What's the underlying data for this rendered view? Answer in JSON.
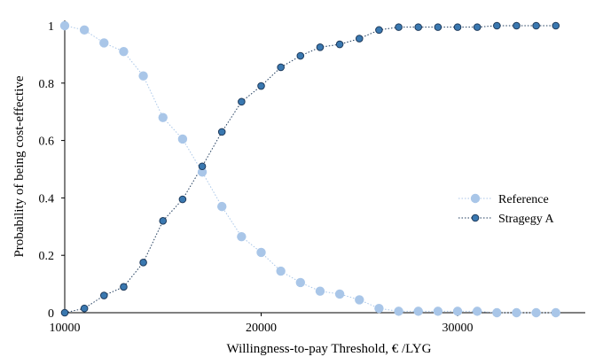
{
  "chart_data": {
    "type": "line",
    "title": "",
    "xlabel": "Willingness-to-pay Threshold, € /LYG",
    "ylabel": "Probability of being cost-effective",
    "xlim": [
      10000,
      36500
    ],
    "ylim": [
      0,
      1.0
    ],
    "xticks": [
      10000,
      20000,
      30000
    ],
    "yticks": [
      0,
      0.2,
      0.4,
      0.6,
      0.8,
      1
    ],
    "x_tick_labels": [
      "10000",
      "20000",
      "30000"
    ],
    "y_tick_labels": [
      "0",
      "0.2",
      "0.4",
      "0.6",
      "0.8",
      "1"
    ],
    "grid": false,
    "legend_position": "right",
    "x": [
      10000,
      11000,
      12000,
      13000,
      14000,
      15000,
      16000,
      17000,
      18000,
      19000,
      20000,
      21000,
      22000,
      23000,
      24000,
      25000,
      26000,
      27000,
      28000,
      29000,
      30000,
      31000,
      32000,
      33000,
      34000,
      35000
    ],
    "series": [
      {
        "name": "Reference",
        "color": "#a9c6e8",
        "marker_edge": "#a9c6e8",
        "line_style": "dotted",
        "values": [
          1.0,
          0.985,
          0.94,
          0.91,
          0.825,
          0.68,
          0.605,
          0.49,
          0.37,
          0.265,
          0.21,
          0.145,
          0.105,
          0.075,
          0.065,
          0.045,
          0.015,
          0.005,
          0.005,
          0.005,
          0.005,
          0.005,
          0.0,
          0.0,
          0.0,
          0.0
        ]
      },
      {
        "name": "Stragegy A",
        "color": "#3a78b0",
        "marker_edge": "#1f3b5c",
        "line_style": "dotted",
        "values": [
          0.0,
          0.015,
          0.06,
          0.09,
          0.175,
          0.32,
          0.395,
          0.51,
          0.63,
          0.735,
          0.79,
          0.855,
          0.895,
          0.925,
          0.935,
          0.955,
          0.985,
          0.995,
          0.995,
          0.995,
          0.995,
          0.995,
          1.0,
          1.0,
          1.0,
          1.0
        ]
      }
    ]
  }
}
